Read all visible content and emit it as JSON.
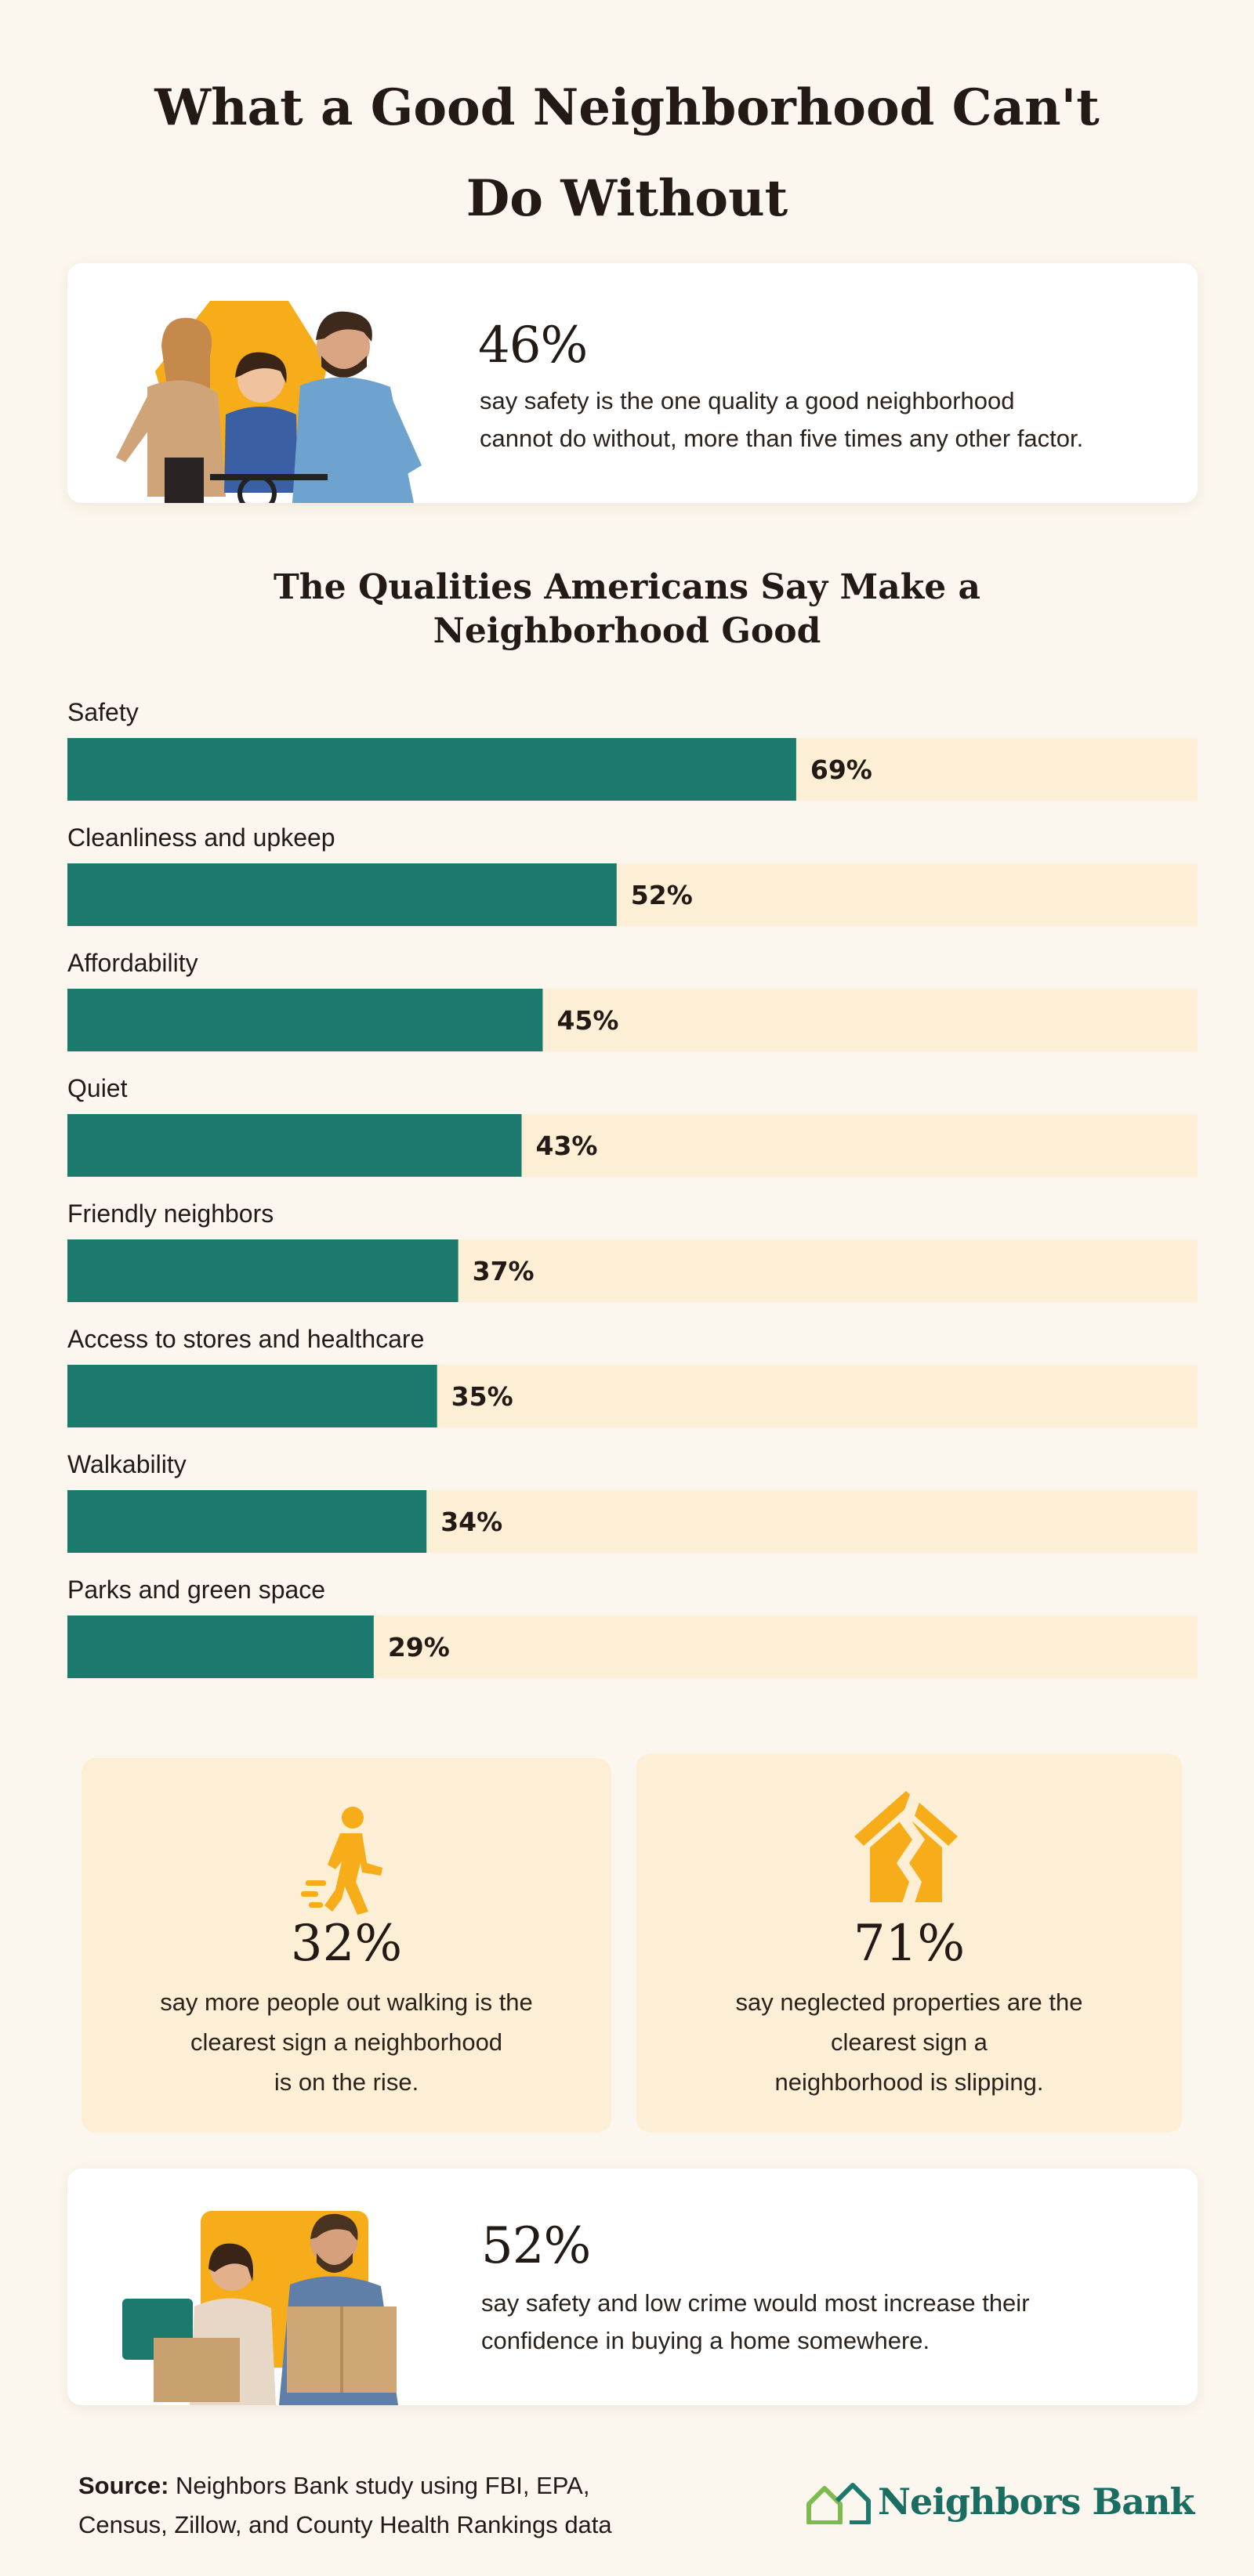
{
  "header": {
    "title_line1": "What a Good Neighborhood Can't",
    "title_line2": "Do Without"
  },
  "hero_stat": {
    "percent": "46%",
    "text_line1": "say safety is the one quality a good neighborhood",
    "text_line2": "cannot do without, more than five times any other factor."
  },
  "chart_data": {
    "type": "bar",
    "orientation": "horizontal",
    "title": "The Qualities Americans Say Make a Neighborhood Good",
    "title_line1": "The Qualities Americans Say Make a",
    "title_line2": "Neighborhood Good",
    "categories": [
      "Safety",
      "Cleanliness and upkeep",
      "Affordability",
      "Quiet",
      "Friendly neighbors",
      "Access to stores and healthcare",
      "Walkability",
      "Parks and green space"
    ],
    "values": [
      69,
      52,
      45,
      43,
      37,
      35,
      34,
      29
    ],
    "value_labels": [
      "69%",
      "52%",
      "45%",
      "43%",
      "37%",
      "35%",
      "34%",
      "29%"
    ],
    "xlim": [
      0,
      107
    ],
    "bar_color": "#1b7a6d",
    "track_color": "#fdefd6",
    "grid": false
  },
  "mini_stats": [
    {
      "icon": "walking-person-icon",
      "percent": "32%",
      "lines": [
        "say more people out walking is the",
        "clearest sign a neighborhood",
        "is on the rise."
      ]
    },
    {
      "icon": "cracked-house-icon",
      "percent": "71%",
      "lines": [
        "say neglected properties are the",
        "clearest sign a",
        "neighborhood is slipping."
      ]
    }
  ],
  "bottom_stat": {
    "percent": "52%",
    "text_line1": "say safety and low crime would most increase their",
    "text_line2": "confidence in buying a home somewhere."
  },
  "footer": {
    "source_label": "Source:",
    "source_line1": "Neighbors Bank study using FBI, EPA,",
    "source_line2": "Census, Zillow, and County Health Rankings data",
    "brand": "Neighbors Bank"
  },
  "colors": {
    "accent_teal": "#1b7a6d",
    "accent_gold": "#f6ad19",
    "background": "#fcf7ee",
    "card_tint": "#fdefd6"
  }
}
